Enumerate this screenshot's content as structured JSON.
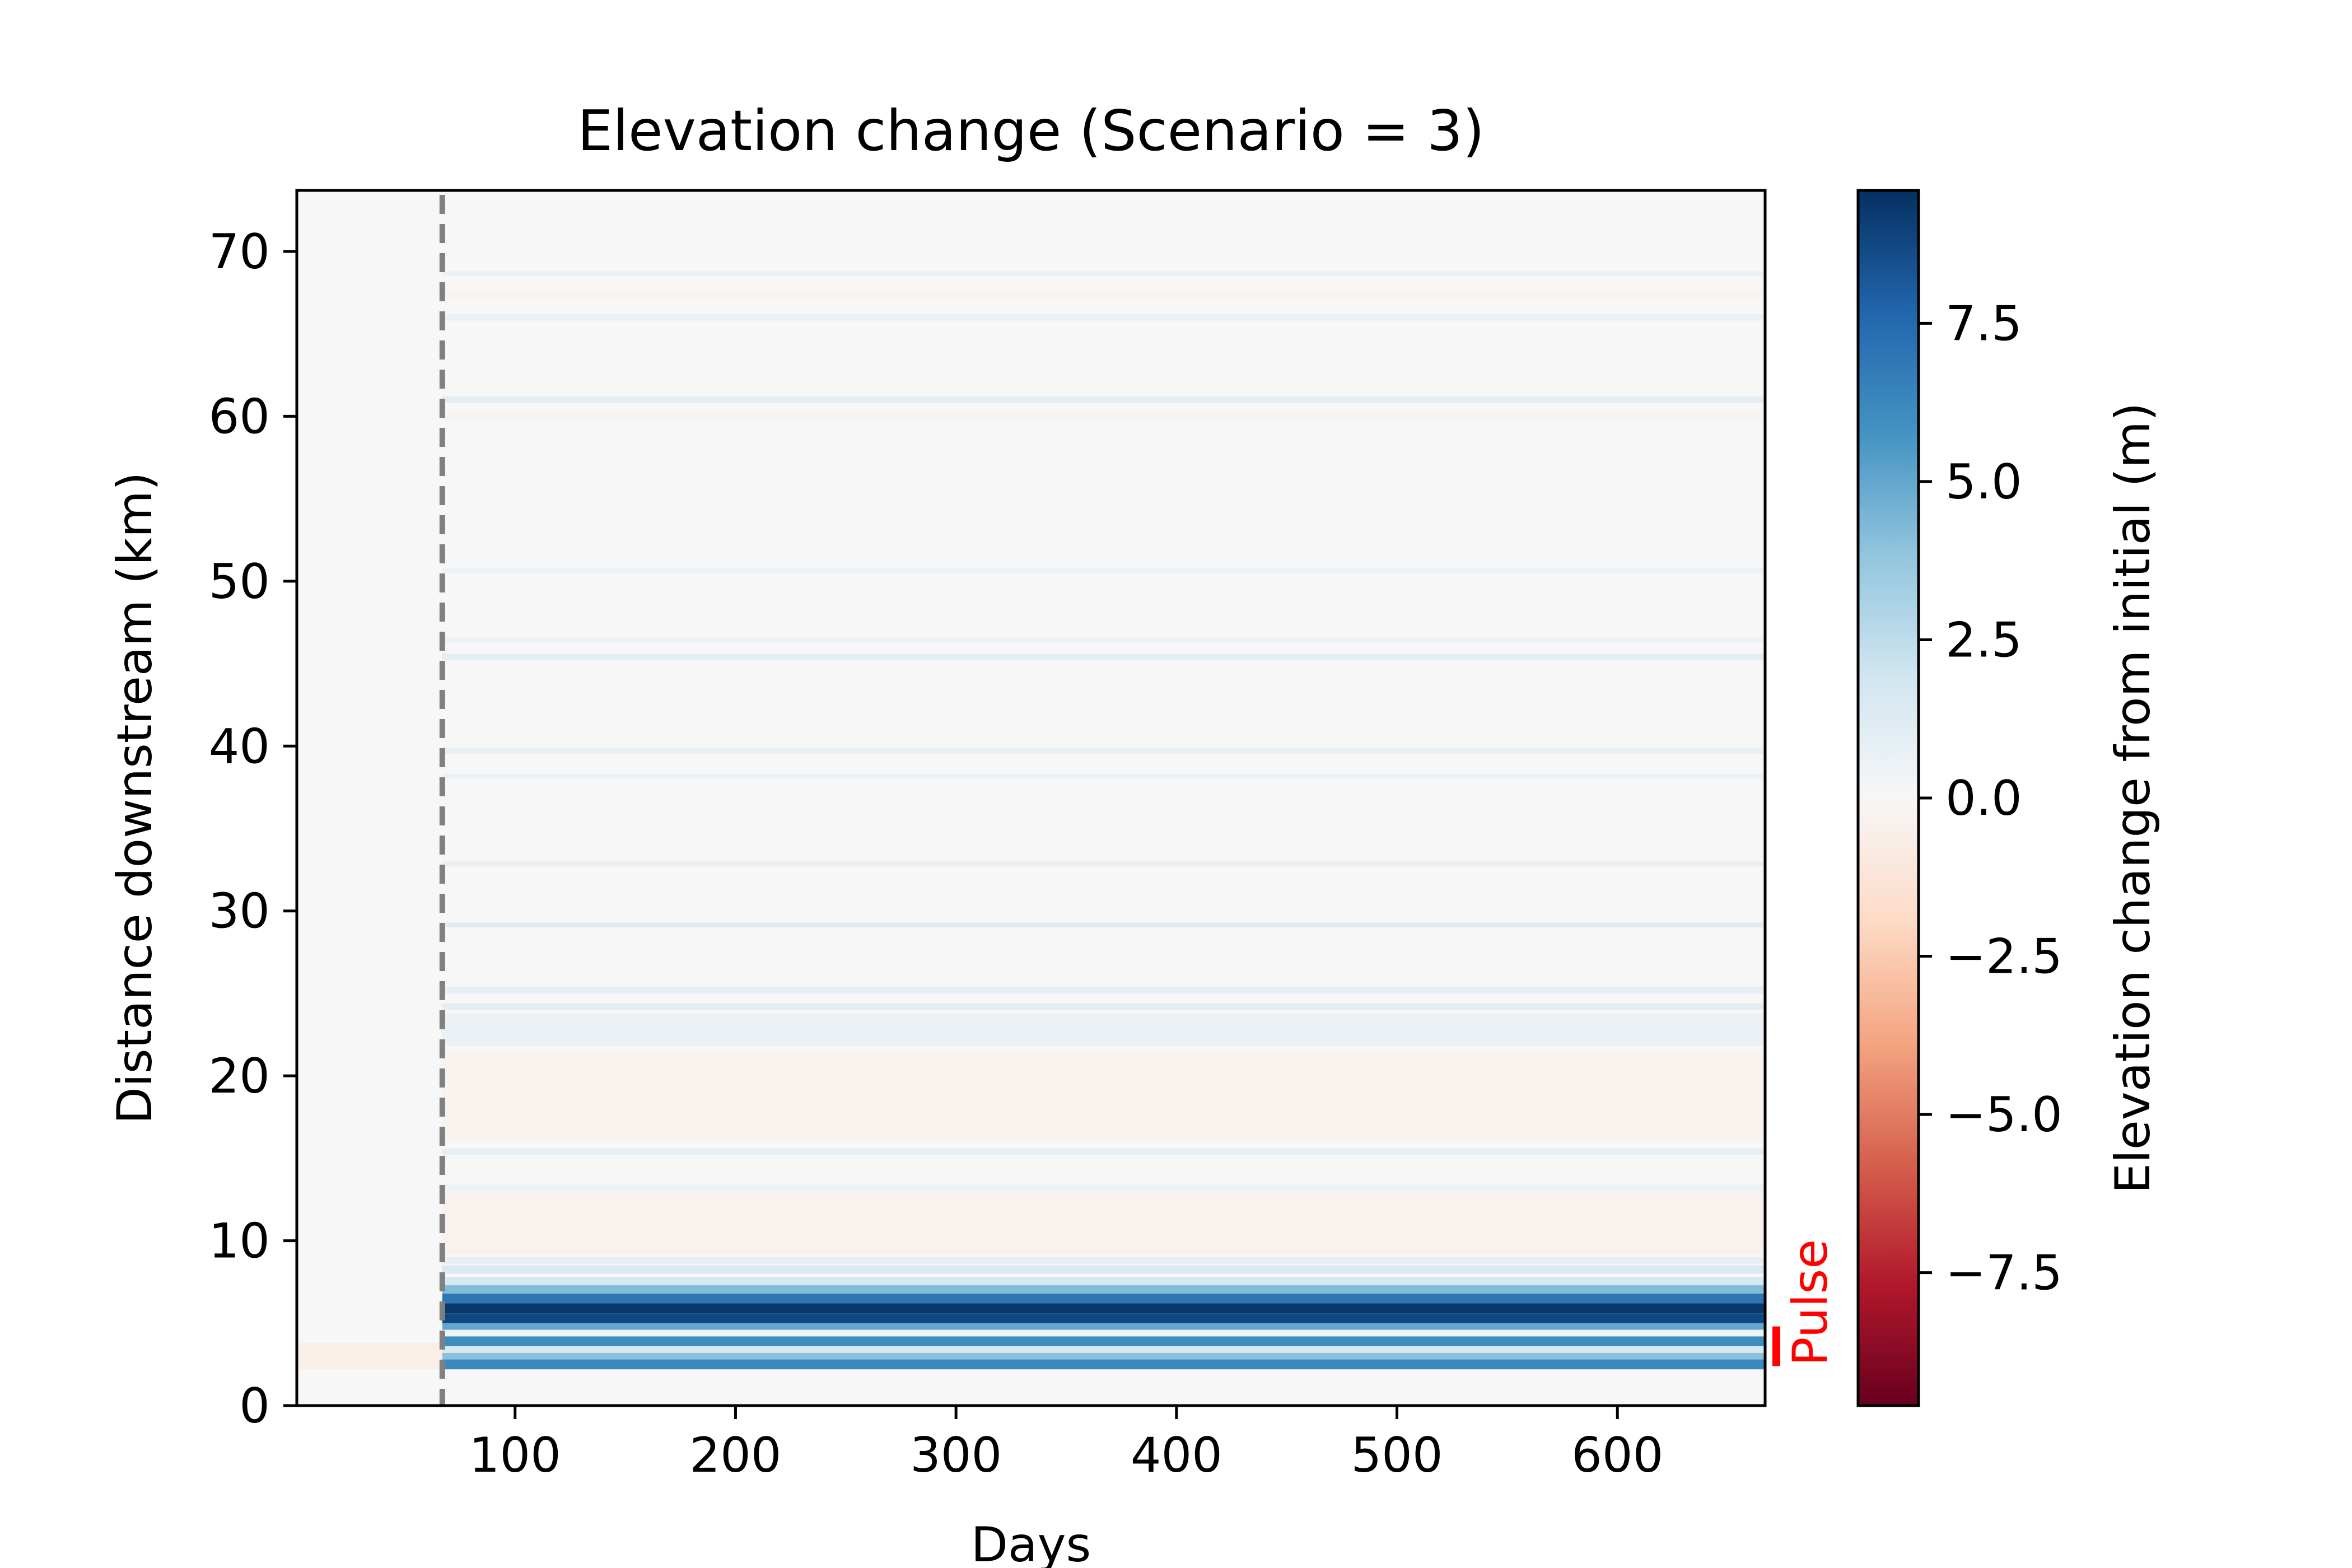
{
  "chart_data": {
    "type": "heatmap",
    "title": "Elevation change (Scenario = 3)",
    "xlabel": "Days",
    "ylabel": "Distance downstream (km)",
    "xlim": [
      1,
      667
    ],
    "ylim": [
      0,
      73.7
    ],
    "xticks": [
      100,
      200,
      300,
      400,
      500,
      600
    ],
    "yticks": [
      0,
      10,
      20,
      30,
      40,
      50,
      60,
      70
    ],
    "grid": false,
    "colormap": "RdBu",
    "colorbar": {
      "label": "Elevation change from initial (m)",
      "range": [
        -9.6,
        9.6
      ],
      "ticks": [
        7.5,
        5.0,
        2.5,
        0.0,
        -2.5,
        -5.0,
        -7.5
      ],
      "tick_labels": [
        "7.5",
        "5.0",
        "2.5",
        "0.0",
        "−2.5",
        "−5.0",
        "−7.5"
      ]
    },
    "pulse_day": 67,
    "annotations": [
      {
        "text": "Pulse",
        "y_range_km": [
          2.4,
          4.8
        ],
        "color": "#ff0000"
      }
    ],
    "pre_pulse_band": {
      "y_range_km": [
        2.2,
        3.8
      ],
      "value": -0.6
    },
    "bands": [
      {
        "y0": 2.2,
        "y1": 2.8,
        "v": 6.2
      },
      {
        "y0": 2.8,
        "y1": 3.2,
        "v": 4.0
      },
      {
        "y0": 3.2,
        "y1": 3.6,
        "v": 1.6
      },
      {
        "y0": 3.6,
        "y1": 4.2,
        "v": 6.0
      },
      {
        "y0": 4.2,
        "y1": 4.6,
        "v": 0.4
      },
      {
        "y0": 4.6,
        "y1": 5.0,
        "v": 5.0
      },
      {
        "y0": 5.0,
        "y1": 5.6,
        "v": 8.8
      },
      {
        "y0": 5.6,
        "y1": 6.2,
        "v": 9.3
      },
      {
        "y0": 6.2,
        "y1": 6.8,
        "v": 7.0
      },
      {
        "y0": 6.8,
        "y1": 7.3,
        "v": 4.2
      },
      {
        "y0": 7.3,
        "y1": 7.8,
        "v": 1.6
      },
      {
        "y0": 8.0,
        "y1": 8.5,
        "v": 1.4
      },
      {
        "y0": 8.6,
        "y1": 9.0,
        "v": 0.8
      },
      {
        "y0": 9.2,
        "y1": 13.0,
        "v": -0.4
      },
      {
        "y0": 13.0,
        "y1": 13.4,
        "v": 0.6
      },
      {
        "y0": 15.2,
        "y1": 15.6,
        "v": 0.9
      },
      {
        "y0": 16.0,
        "y1": 21.5,
        "v": -0.3
      },
      {
        "y0": 21.8,
        "y1": 23.8,
        "v": 0.6
      },
      {
        "y0": 24.0,
        "y1": 24.4,
        "v": 1.0
      },
      {
        "y0": 25.0,
        "y1": 25.4,
        "v": 0.8
      },
      {
        "y0": 29.0,
        "y1": 29.3,
        "v": 1.2
      },
      {
        "y0": 32.7,
        "y1": 33.0,
        "v": 0.7
      },
      {
        "y0": 38.0,
        "y1": 38.3,
        "v": 0.6
      },
      {
        "y0": 39.5,
        "y1": 39.9,
        "v": 0.7
      },
      {
        "y0": 45.2,
        "y1": 45.6,
        "v": 1.0
      },
      {
        "y0": 46.3,
        "y1": 46.6,
        "v": 0.6
      },
      {
        "y0": 50.5,
        "y1": 50.8,
        "v": 0.6
      },
      {
        "y0": 59.8,
        "y1": 60.2,
        "v": -0.3
      },
      {
        "y0": 60.8,
        "y1": 61.2,
        "v": 1.0
      },
      {
        "y0": 65.8,
        "y1": 66.2,
        "v": 0.6
      },
      {
        "y0": 67.2,
        "y1": 67.6,
        "v": -0.3
      },
      {
        "y0": 68.5,
        "y1": 68.8,
        "v": 0.6
      }
    ]
  }
}
